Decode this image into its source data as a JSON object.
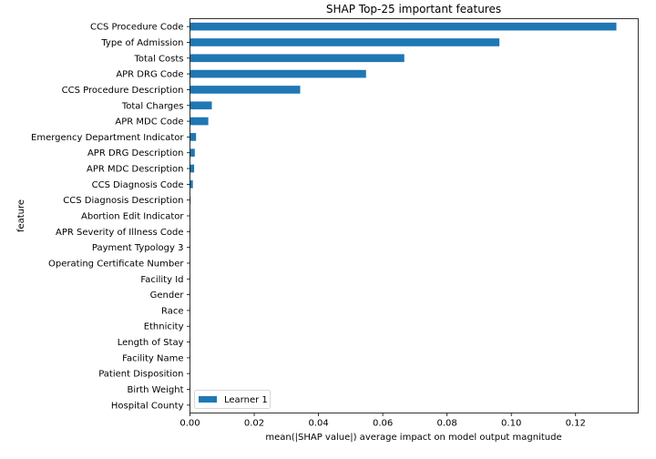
{
  "chart_data": {
    "type": "bar",
    "orientation": "horizontal",
    "title": "SHAP Top-25 important features",
    "xlabel": "mean(|SHAP value|) average impact on model output magnitude",
    "ylabel": "feature",
    "xlim": [
      0,
      0.1395
    ],
    "xticks": [
      0,
      0.02,
      0.04,
      0.06,
      0.08,
      0.1,
      0.12
    ],
    "xtick_labels": [
      "0.00",
      "0.02",
      "0.04",
      "0.06",
      "0.08",
      "0.10",
      "0.12"
    ],
    "grid": false,
    "legend_position": "lower-left",
    "color": "#1f77b4",
    "categories": [
      "CCS Procedure Code",
      "Type of Admission",
      "Total Costs",
      "APR DRG Code",
      "CCS Procedure Description",
      "Total Charges",
      "APR MDC Code",
      "Emergency Department Indicator",
      "APR DRG Description",
      "APR MDC Description",
      "CCS Diagnosis Code",
      "CCS Diagnosis Description",
      "Abortion Edit Indicator",
      "APR Severity of Illness Code",
      "Payment Typology 3",
      "Operating Certificate Number",
      "Facility Id",
      "Gender",
      "Race",
      "Ethnicity",
      "Length of Stay",
      "Facility Name",
      "Patient Disposition",
      "Birth Weight",
      "Hospital County"
    ],
    "series": [
      {
        "name": "Learner 1",
        "values": [
          0.1327,
          0.0963,
          0.0667,
          0.0548,
          0.0343,
          0.0068,
          0.0057,
          0.0019,
          0.0015,
          0.0013,
          0.0009,
          0.0002,
          0.0001,
          0.0001,
          0.0001,
          0.0001,
          0.0001,
          0.0001,
          0.0001,
          0.0001,
          0.0001,
          0.0001,
          0.0001,
          0.0001,
          0.0001
        ]
      }
    ]
  }
}
